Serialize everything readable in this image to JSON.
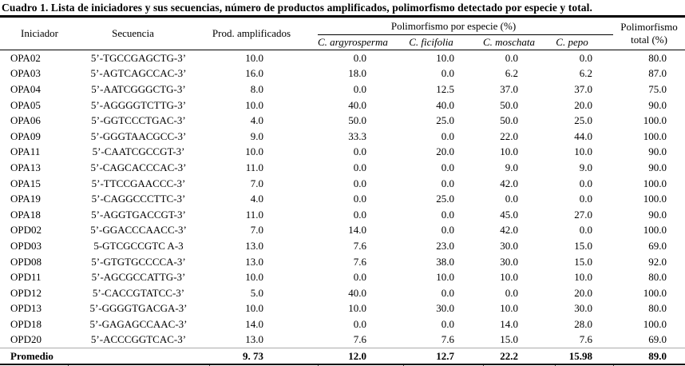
{
  "title": "Cuadro 1. Lista de iniciadores y sus secuencias, número de productos amplificados, polimorfismo detectado por especie y total.",
  "colors": {
    "rule": "#000000",
    "summary_separator": "#ababab",
    "text": "#000000",
    "background": "#ffffff"
  },
  "table": {
    "headers": {
      "iniciador": "Iniciador",
      "secuencia": "Secuencia",
      "prod": "Prod. amplificados",
      "poly_species_group": "Polimorfismo por especie (%)",
      "species": [
        "C. argyrosperma",
        "C. ficifolia",
        "C. moschata",
        "C. pepo"
      ],
      "total": "Polimorfismo total (%)"
    },
    "rows": [
      {
        "iniciador": "OPA02",
        "secuencia": "5’-TGCCGAGCTG-3’",
        "prod": "10.0",
        "argyrosperma": "0.0",
        "ficifolia": "10.0",
        "moschata": "0.0",
        "pepo": "0.0",
        "total": "80.0"
      },
      {
        "iniciador": "OPA03",
        "secuencia": "5’-AGTCAGCCAC-3’",
        "prod": "16.0",
        "argyrosperma": "18.0",
        "ficifolia": "0.0",
        "moschata": "6.2",
        "pepo": "6.2",
        "total": "87.0"
      },
      {
        "iniciador": "OPA04",
        "secuencia": "5’-AATCGGGCTG-3’",
        "prod": "8.0",
        "argyrosperma": "0.0",
        "ficifolia": "12.5",
        "moschata": "37.0",
        "pepo": "37.0",
        "total": "75.0"
      },
      {
        "iniciador": "OPA05",
        "secuencia": "5’-AGGGGTCTTG-3’",
        "prod": "10.0",
        "argyrosperma": "40.0",
        "ficifolia": "40.0",
        "moschata": "50.0",
        "pepo": "20.0",
        "total": "90.0"
      },
      {
        "iniciador": "OPA06",
        "secuencia": "5’-GGTCCCTGAC-3’",
        "prod": "4.0",
        "argyrosperma": "50.0",
        "ficifolia": "25.0",
        "moschata": "50.0",
        "pepo": "25.0",
        "total": "100.0"
      },
      {
        "iniciador": "OPA09",
        "secuencia": "5’-GGGTAACGCC-3’",
        "prod": "9.0",
        "argyrosperma": "33.3",
        "ficifolia": "0.0",
        "moschata": "22.0",
        "pepo": "44.0",
        "total": "100.0"
      },
      {
        "iniciador": "OPA11",
        "secuencia": "5’-CAATCGCCGT-3’",
        "prod": "10.0",
        "argyrosperma": "0.0",
        "ficifolia": "20.0",
        "moschata": "10.0",
        "pepo": "10.0",
        "total": "90.0"
      },
      {
        "iniciador": "OPA13",
        "secuencia": "5’-CAGCACCCAC-3’",
        "prod": "11.0",
        "argyrosperma": "0.0",
        "ficifolia": "0.0",
        "moschata": "9.0",
        "pepo": "9.0",
        "total": "90.0"
      },
      {
        "iniciador": "OPA15",
        "secuencia": "5’-TTCCGAACCC-3’",
        "prod": "7.0",
        "argyrosperma": "0.0",
        "ficifolia": "0.0",
        "moschata": "42.0",
        "pepo": "0.0",
        "total": "100.0"
      },
      {
        "iniciador": "OPA19",
        "secuencia": "5’-CAGGCCCTTC-3’",
        "prod": "4.0",
        "argyrosperma": "0.0",
        "ficifolia": "25.0",
        "moschata": "0.0",
        "pepo": "0.0",
        "total": "100.0"
      },
      {
        "iniciador": "OPA18",
        "secuencia": "5’-AGGTGACCGT-3’",
        "prod": "11.0",
        "argyrosperma": "0.0",
        "ficifolia": "0.0",
        "moschata": "45.0",
        "pepo": "27.0",
        "total": "90.0"
      },
      {
        "iniciador": "OPD02",
        "secuencia": "5’-GGACCCAACC-3’",
        "prod": "7.0",
        "argyrosperma": "14.0",
        "ficifolia": "0.0",
        "moschata": "42.0",
        "pepo": "0.0",
        "total": "100.0"
      },
      {
        "iniciador": "OPD03",
        "secuencia": "5-GTCGCCGTC A-3",
        "prod": "13.0",
        "argyrosperma": "7.6",
        "ficifolia": "23.0",
        "moschata": "30.0",
        "pepo": "15.0",
        "total": "69.0"
      },
      {
        "iniciador": "OPD08",
        "secuencia": "5’-GTGTGCCCCA-3’",
        "prod": "13.0",
        "argyrosperma": "7.6",
        "ficifolia": "38.0",
        "moschata": "30.0",
        "pepo": "15.0",
        "total": "92.0"
      },
      {
        "iniciador": "OPD11",
        "secuencia": "5’-AGCGCCATTG-3’",
        "prod": "10.0",
        "argyrosperma": "0.0",
        "ficifolia": "10.0",
        "moschata": "10.0",
        "pepo": "10.0",
        "total": "80.0"
      },
      {
        "iniciador": "OPD12",
        "secuencia": "5’-CACCGTATCC-3’",
        "prod": "5.0",
        "argyrosperma": "40.0",
        "ficifolia": "0.0",
        "moschata": "0.0",
        "pepo": "20.0",
        "total": "100.0"
      },
      {
        "iniciador": "OPD13",
        "secuencia": "5’-GGGGTGACGA-3’",
        "prod": "10.0",
        "argyrosperma": "10.0",
        "ficifolia": "30.0",
        "moschata": "10.0",
        "pepo": "30.0",
        "total": "80.0"
      },
      {
        "iniciador": "OPD18",
        "secuencia": "5’-GAGAGCCAAC-3’",
        "prod": "14.0",
        "argyrosperma": "0.0",
        "ficifolia": "0.0",
        "moschata": "14.0",
        "pepo": "28.0",
        "total": "100.0"
      },
      {
        "iniciador": "OPD20",
        "secuencia": "5’-ACCCGGTCAC-3’",
        "prod": "13.0",
        "argyrosperma": "7.6",
        "ficifolia": "7.6",
        "moschata": "15.0",
        "pepo": "7.6",
        "total": "69.0"
      }
    ],
    "footer": {
      "label": "Promedio",
      "secuencia": "",
      "prod": "9. 73",
      "argyrosperma": "12.0",
      "ficifolia": "12.7",
      "moschata": "22.2",
      "pepo": "15.98",
      "total": "89.0"
    }
  }
}
